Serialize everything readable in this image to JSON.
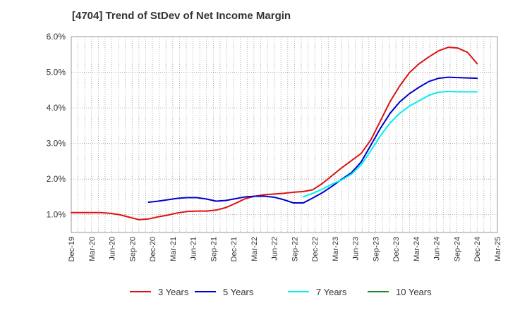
{
  "chart_data": {
    "type": "line",
    "title": "[4704]  Trend of StDev of Net Income Margin",
    "xlabel": "",
    "ylabel": "",
    "ylim": [
      0.5,
      6.0
    ],
    "y_ticks": [
      "1.0%",
      "2.0%",
      "3.0%",
      "4.0%",
      "5.0%",
      "6.0%"
    ],
    "y_tick_values": [
      1.0,
      2.0,
      3.0,
      4.0,
      5.0,
      6.0
    ],
    "x_tick_labels": [
      "Dec-19",
      "Mar-20",
      "Jun-20",
      "Sep-20",
      "Dec-20",
      "Mar-21",
      "Jun-21",
      "Sep-21",
      "Dec-21",
      "Mar-22",
      "Jun-22",
      "Sep-22",
      "Dec-22",
      "Mar-23",
      "Jun-23",
      "Sep-23",
      "Dec-23",
      "Mar-24",
      "Jun-24",
      "Sep-24",
      "Dec-24",
      "Mar-25"
    ],
    "grid": true,
    "legend_position": "bottom",
    "series": [
      {
        "name": "3 Years",
        "color": "#dd1111",
        "values": [
          1.06,
          1.06,
          1.06,
          1.06,
          1.04,
          1.0,
          0.93,
          0.86,
          0.88,
          0.94,
          0.99,
          1.05,
          1.09,
          1.1,
          1.1,
          1.13,
          1.2,
          1.32,
          1.45,
          1.52,
          1.56,
          1.58,
          1.6,
          1.63,
          1.65,
          1.7,
          1.88,
          2.1,
          2.32,
          2.52,
          2.72,
          3.1,
          3.64,
          4.18,
          4.62,
          4.99,
          5.24,
          5.43,
          5.6,
          5.7,
          5.68,
          5.56,
          5.24
        ]
      },
      {
        "name": "5 Years",
        "color": "#0000cc",
        "values": [
          null,
          null,
          null,
          null,
          null,
          null,
          null,
          null,
          1.35,
          1.38,
          1.42,
          1.46,
          1.48,
          1.48,
          1.44,
          1.38,
          1.4,
          1.45,
          1.5,
          1.52,
          1.52,
          1.49,
          1.42,
          1.33,
          1.33,
          1.47,
          1.62,
          1.8,
          2.0,
          2.18,
          2.48,
          2.95,
          3.43,
          3.85,
          4.17,
          4.4,
          4.58,
          4.74,
          4.83,
          4.86,
          4.85,
          4.84,
          4.83
        ]
      },
      {
        "name": "7 Years",
        "color": "#00eeee",
        "values": [
          null,
          null,
          null,
          null,
          null,
          null,
          null,
          null,
          null,
          null,
          null,
          null,
          null,
          null,
          null,
          null,
          null,
          null,
          null,
          null,
          null,
          null,
          null,
          null,
          1.5,
          1.6,
          1.72,
          1.86,
          1.98,
          2.14,
          2.4,
          2.8,
          3.22,
          3.58,
          3.85,
          4.05,
          4.2,
          4.35,
          4.44,
          4.46,
          4.45,
          4.45,
          4.45
        ]
      },
      {
        "name": "10 Years",
        "color": "#228822",
        "values": []
      }
    ]
  }
}
